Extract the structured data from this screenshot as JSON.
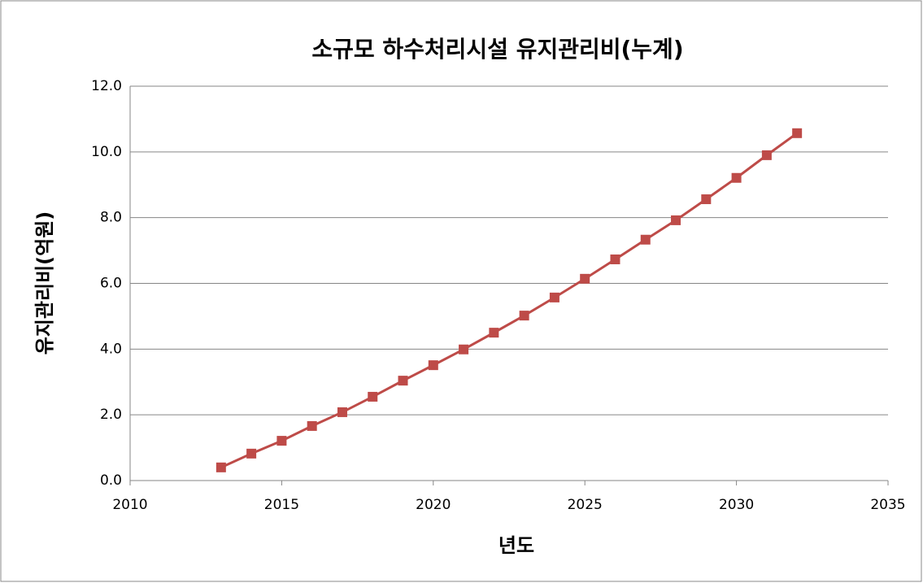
{
  "chart_data": {
    "type": "line",
    "title": "소규모 하수처리시설 유지관리비(누계)",
    "x_label": "년도",
    "y_label": "유지관리비(억원)",
    "x": [
      2013,
      2014,
      2015,
      2016,
      2017,
      2018,
      2019,
      2020,
      2021,
      2022,
      2023,
      2024,
      2025,
      2026,
      2027,
      2028,
      2029,
      2030,
      2031,
      2032
    ],
    "series": [
      {
        "name": "유지관리비",
        "color": "#be4b48",
        "values": [
          0.4,
          0.82,
          1.21,
          1.66,
          2.08,
          2.55,
          3.04,
          3.51,
          3.99,
          4.5,
          5.02,
          5.57,
          6.14,
          6.73,
          7.33,
          7.92,
          8.56,
          9.21,
          9.9,
          10.57
        ]
      }
    ],
    "xlim": [
      2010,
      2035
    ],
    "xticks": [
      2010,
      2015,
      2020,
      2025,
      2030,
      2035
    ],
    "ylim": [
      0,
      12
    ],
    "yticks": [
      {
        "value": 0,
        "label": "0.0"
      },
      {
        "value": 2,
        "label": "2.0"
      },
      {
        "value": 4,
        "label": "4.0"
      },
      {
        "value": 6,
        "label": "6.0"
      },
      {
        "value": 8,
        "label": "8.0"
      },
      {
        "value": 10,
        "label": "10.0"
      },
      {
        "value": 12,
        "label": "12.0"
      }
    ],
    "grid": true
  }
}
